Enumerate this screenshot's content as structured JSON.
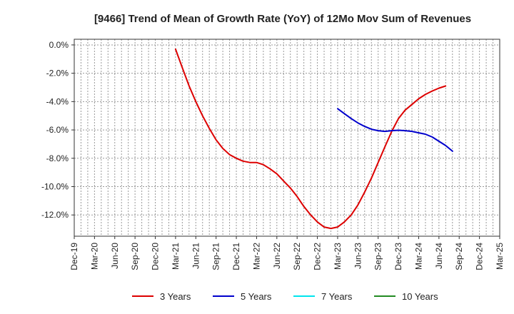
{
  "chart_data": {
    "type": "line",
    "title": "[9466]  Trend of Mean of Growth Rate (YoY) of 12Mo Mov Sum of Revenues",
    "xlabel": "",
    "ylabel": "",
    "x_tick_labels": [
      "Dec-19",
      "Mar-20",
      "Jun-20",
      "Sep-20",
      "Dec-20",
      "Mar-21",
      "Jun-21",
      "Sep-21",
      "Dec-21",
      "Mar-22",
      "Jun-22",
      "Sep-22",
      "Dec-22",
      "Mar-23",
      "Jun-23",
      "Sep-23",
      "Dec-23",
      "Mar-24",
      "Jun-24",
      "Sep-24",
      "Dec-24",
      "Mar-25"
    ],
    "y_ticks": [
      0.0,
      -2.0,
      -4.0,
      -6.0,
      -8.0,
      -10.0,
      -12.0
    ],
    "y_tick_labels": [
      "0.0%",
      "-2.0%",
      "-4.0%",
      "-6.0%",
      "-8.0%",
      "-10.0%",
      "-12.0%"
    ],
    "ylim": [
      -13.5,
      0.4
    ],
    "x_minor_per_major": 3,
    "grid": true,
    "legend_position": "bottom",
    "series": [
      {
        "name": "3 Years",
        "color": "#dd0000",
        "points": [
          [
            5.0,
            -0.3
          ],
          [
            5.33,
            -1.6
          ],
          [
            5.67,
            -2.9
          ],
          [
            6.0,
            -4.0
          ],
          [
            6.33,
            -5.0
          ],
          [
            6.67,
            -5.9
          ],
          [
            7.0,
            -6.7
          ],
          [
            7.33,
            -7.3
          ],
          [
            7.67,
            -7.75
          ],
          [
            8.0,
            -8.0
          ],
          [
            8.33,
            -8.2
          ],
          [
            8.67,
            -8.3
          ],
          [
            9.0,
            -8.3
          ],
          [
            9.33,
            -8.45
          ],
          [
            9.67,
            -8.75
          ],
          [
            10.0,
            -9.1
          ],
          [
            10.33,
            -9.6
          ],
          [
            10.67,
            -10.1
          ],
          [
            11.0,
            -10.7
          ],
          [
            11.33,
            -11.4
          ],
          [
            11.67,
            -12.0
          ],
          [
            12.0,
            -12.5
          ],
          [
            12.33,
            -12.85
          ],
          [
            12.67,
            -12.95
          ],
          [
            13.0,
            -12.85
          ],
          [
            13.33,
            -12.5
          ],
          [
            13.67,
            -12.0
          ],
          [
            14.0,
            -11.3
          ],
          [
            14.33,
            -10.4
          ],
          [
            14.67,
            -9.4
          ],
          [
            15.0,
            -8.3
          ],
          [
            15.33,
            -7.2
          ],
          [
            15.67,
            -6.1
          ],
          [
            16.0,
            -5.2
          ],
          [
            16.33,
            -4.6
          ],
          [
            16.67,
            -4.2
          ],
          [
            17.0,
            -3.8
          ],
          [
            17.33,
            -3.5
          ],
          [
            17.67,
            -3.25
          ],
          [
            18.0,
            -3.05
          ],
          [
            18.33,
            -2.9
          ]
        ]
      },
      {
        "name": "5 Years",
        "color": "#0000cc",
        "points": [
          [
            13.0,
            -4.5
          ],
          [
            13.33,
            -4.85
          ],
          [
            13.67,
            -5.2
          ],
          [
            14.0,
            -5.5
          ],
          [
            14.33,
            -5.75
          ],
          [
            14.67,
            -5.95
          ],
          [
            15.0,
            -6.05
          ],
          [
            15.33,
            -6.1
          ],
          [
            15.67,
            -6.05
          ],
          [
            16.0,
            -6.02
          ],
          [
            16.33,
            -6.05
          ],
          [
            16.67,
            -6.1
          ],
          [
            17.0,
            -6.2
          ],
          [
            17.33,
            -6.3
          ],
          [
            17.67,
            -6.5
          ],
          [
            18.0,
            -6.8
          ],
          [
            18.33,
            -7.1
          ],
          [
            18.67,
            -7.5
          ]
        ]
      },
      {
        "name": "7 Years",
        "color": "#00e5ee",
        "points": []
      },
      {
        "name": "10 Years",
        "color": "#228b22",
        "points": []
      }
    ]
  }
}
